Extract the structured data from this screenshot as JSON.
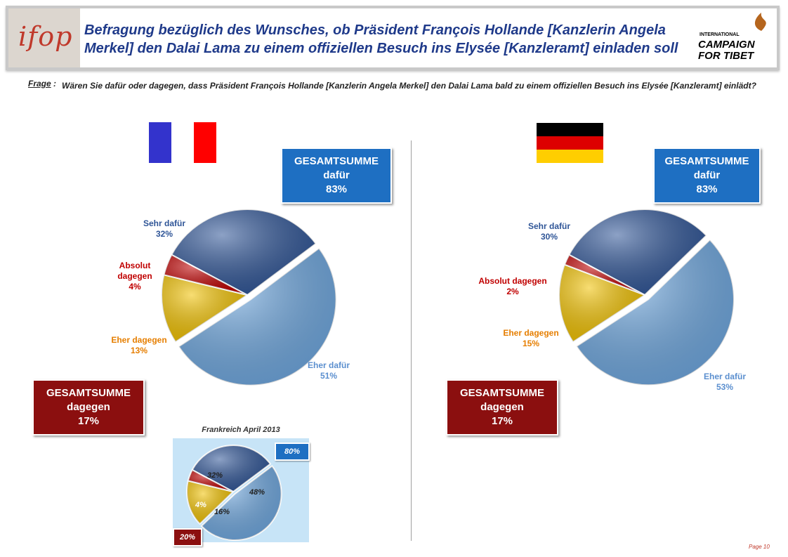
{
  "header": {
    "logo": "ifop",
    "title": "Befragung bezüglich des Wunsches, ob Präsident François Hollande [Kanzlerin Angela Merkel] den Dalai Lama zu einem offiziellen Besuch ins Elysée [Kanzleramt] einladen soll",
    "partner_logo_small": "INTERNATIONAL",
    "partner_logo_line1": "CAMPAIGN",
    "partner_logo_line2": "FOR TIBET"
  },
  "question": {
    "label": "Frage",
    "separator": ":",
    "text": "Wären Sie dafür oder dagegen, dass Präsident François Hollande [Kanzlerin Angela Merkel] den Dalai Lama bald zu einem offiziellen Besuch ins Elysée [Kanzleramt] einlädt?"
  },
  "france": {
    "total_for": {
      "line1": "GESAMTSUMME",
      "line2": "dafür",
      "line3": "83%"
    },
    "total_against": {
      "line1": "GESAMTSUMME",
      "line2": "dagegen",
      "line3": "17%"
    },
    "flag_colors": [
      "#3333cc",
      "#ffffff",
      "#ff0000"
    ]
  },
  "germany": {
    "total_for": {
      "line1": "GESAMTSUMME",
      "line2": "dafür",
      "line3": "83%"
    },
    "total_against": {
      "line1": "GESAMTSUMME",
      "line2": "dagegen",
      "line3": "17%"
    },
    "flag_colors": [
      "#000000",
      "#dd0000",
      "#ffce00"
    ]
  },
  "inset": {
    "title": "Frankreich April 2013",
    "total_for": "80%",
    "total_against": "20%"
  },
  "colors": {
    "sehr_dafur": "#2f5597",
    "eher_dafur": "#6fa8e0",
    "absolut_dagegen": "#c00000",
    "eher_dagegen": "#f2c200"
  },
  "chart_data": [
    {
      "type": "pie",
      "title": "",
      "slices": [
        {
          "label": "Sehr dafür",
          "value": 32,
          "display": "32%"
        },
        {
          "label": "Eher dafür",
          "value": 51,
          "display": "51%"
        },
        {
          "label": "Eher dagegen",
          "value": 13,
          "display": "13%"
        },
        {
          "label": "Absolut dagegen",
          "value": 4,
          "display": "4%"
        }
      ]
    },
    {
      "type": "pie",
      "title": "",
      "slices": [
        {
          "label": "Sehr dafür",
          "value": 30,
          "display": "30%"
        },
        {
          "label": "Eher dafür",
          "value": 53,
          "display": "53%"
        },
        {
          "label": "Eher dagegen",
          "value": 15,
          "display": "15%"
        },
        {
          "label": "Absolut dagegen",
          "value": 2,
          "display": "2%"
        }
      ]
    },
    {
      "type": "pie",
      "title": "Frankreich April 2013",
      "slices": [
        {
          "label": "",
          "value": 32,
          "display": "32%"
        },
        {
          "label": "",
          "value": 48,
          "display": "48%"
        },
        {
          "label": "",
          "value": 16,
          "display": "16%"
        },
        {
          "label": "",
          "value": 4,
          "display": "4%"
        }
      ]
    }
  ],
  "page": "Page 10"
}
